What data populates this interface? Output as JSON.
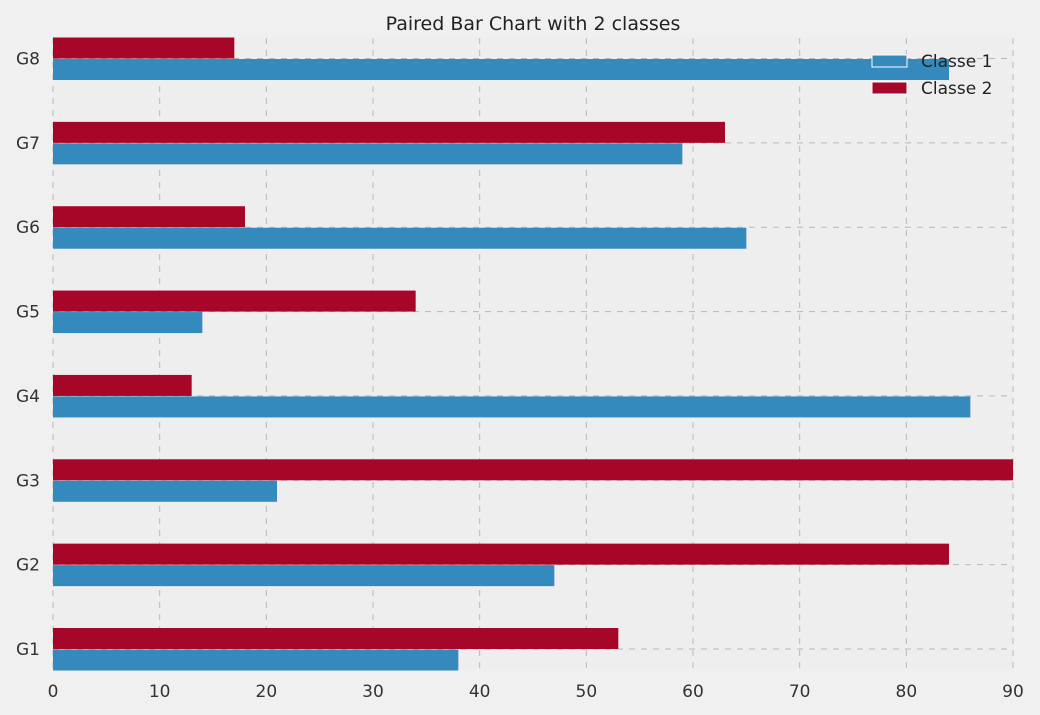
{
  "chart_data": {
    "type": "bar",
    "orientation": "horizontal",
    "title": "Paired Bar Chart with 2 classes",
    "xlabel": "",
    "ylabel": "",
    "categories": [
      "G1",
      "G2",
      "G3",
      "G4",
      "G5",
      "G6",
      "G7",
      "G8"
    ],
    "series": [
      {
        "name": "Classe 1",
        "color": "#348abd",
        "values": [
          38,
          47,
          21,
          86,
          14,
          65,
          59,
          84
        ]
      },
      {
        "name": "Classe 2",
        "color": "#a60628",
        "values": [
          53,
          84,
          90,
          13,
          34,
          18,
          63,
          17
        ]
      }
    ],
    "xlim": [
      0,
      90
    ],
    "xticks": [
      0,
      10,
      20,
      30,
      40,
      50,
      60,
      70,
      80,
      90
    ],
    "grid": true,
    "legend": "top-right"
  }
}
